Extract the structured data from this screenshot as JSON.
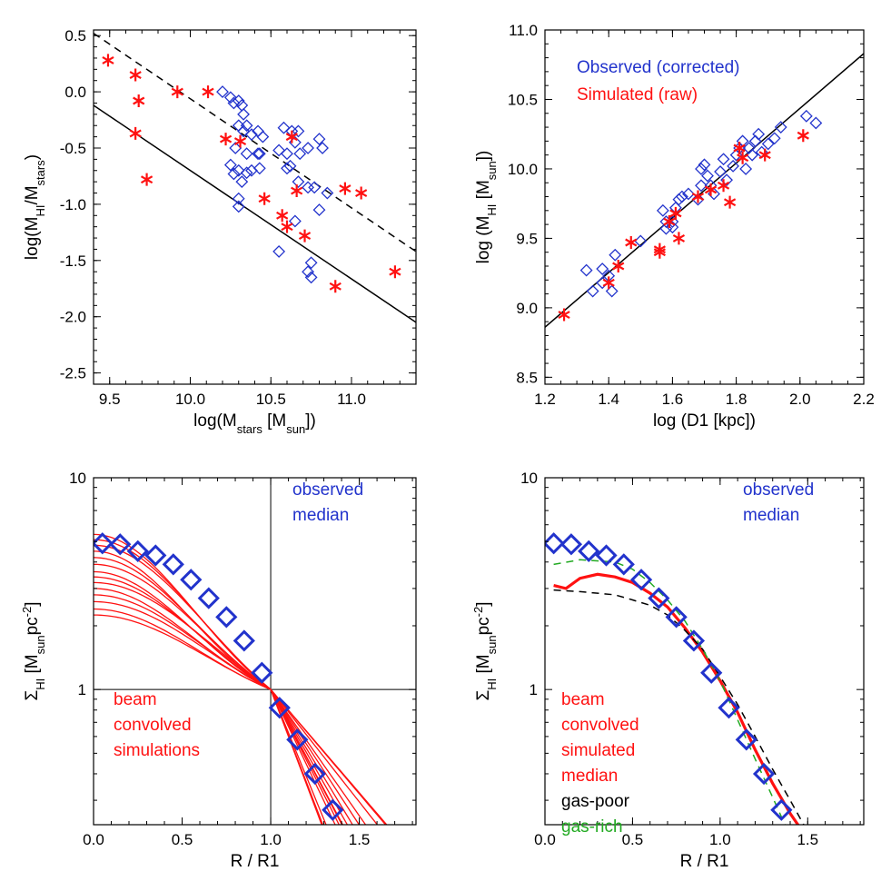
{
  "chart_data": [
    {
      "id": "p1",
      "type": "scatter",
      "xlim": [
        9.4,
        11.4
      ],
      "ylim": [
        -2.6,
        0.55
      ],
      "xticks": [
        "9.5",
        "10.0",
        "10.5",
        "11.0"
      ],
      "yticks": [
        "0.5",
        "0.0",
        "-0.5",
        "-1.0",
        "-1.5",
        "-2.0",
        "-2.5"
      ],
      "xlabel": {
        "pre": "log(M",
        "sub": "stars",
        "mid": " [M",
        "sub2": "sun",
        "post": "])"
      },
      "ylabel": {
        "pre": "log(M",
        "sub": "HI",
        "mid": "/M",
        "sub2": "stars",
        "post": ")"
      },
      "lines": [
        {
          "name": "solid-relation",
          "style": "solid",
          "color": "#000000",
          "points": [
            [
              9.4,
              -0.12
            ],
            [
              11.4,
              -2.05
            ]
          ]
        },
        {
          "name": "dashed-relation",
          "style": "dashed",
          "color": "#000000",
          "points": [
            [
              9.4,
              0.52
            ],
            [
              11.4,
              -1.42
            ]
          ]
        }
      ],
      "series": [
        {
          "name": "Observed (corrected)",
          "marker": "diamond",
          "color": "#2233cc",
          "points": [
            [
              10.2,
              0.0
            ],
            [
              10.25,
              -0.05
            ],
            [
              10.27,
              -0.1
            ],
            [
              10.3,
              -0.08
            ],
            [
              10.32,
              -0.12
            ],
            [
              10.33,
              -0.2
            ],
            [
              10.3,
              -0.3
            ],
            [
              10.35,
              -0.3
            ],
            [
              10.33,
              -0.35
            ],
            [
              10.38,
              -0.38
            ],
            [
              10.42,
              -0.35
            ],
            [
              10.45,
              -0.4
            ],
            [
              10.28,
              -0.5
            ],
            [
              10.35,
              -0.55
            ],
            [
              10.42,
              -0.55
            ],
            [
              10.43,
              -0.55
            ],
            [
              10.55,
              -0.52
            ],
            [
              10.25,
              -0.65
            ],
            [
              10.3,
              -0.7
            ],
            [
              10.38,
              -0.7
            ],
            [
              10.43,
              -0.68
            ],
            [
              10.27,
              -0.73
            ],
            [
              10.35,
              -0.72
            ],
            [
              10.6,
              -0.68
            ],
            [
              10.62,
              -0.66
            ],
            [
              10.32,
              -0.8
            ],
            [
              10.58,
              -0.32
            ],
            [
              10.63,
              -0.35
            ],
            [
              10.67,
              -0.35
            ],
            [
              10.65,
              -0.45
            ],
            [
              10.6,
              -0.55
            ],
            [
              10.68,
              -0.55
            ],
            [
              10.73,
              -0.5
            ],
            [
              10.8,
              -0.42
            ],
            [
              10.82,
              -0.5
            ],
            [
              10.3,
              -0.95
            ],
            [
              10.3,
              -1.02
            ],
            [
              10.67,
              -0.8
            ],
            [
              10.73,
              -0.85
            ],
            [
              10.77,
              -0.85
            ],
            [
              10.85,
              -0.9
            ],
            [
              10.8,
              -1.05
            ],
            [
              10.65,
              -1.15
            ],
            [
              10.55,
              -1.42
            ],
            [
              10.75,
              -1.52
            ],
            [
              10.73,
              -1.6
            ],
            [
              10.75,
              -1.65
            ]
          ]
        },
        {
          "name": "Simulated (raw)",
          "marker": "asterisk",
          "color": "#ff1111",
          "points": [
            [
              9.49,
              0.28
            ],
            [
              9.66,
              0.15
            ],
            [
              9.68,
              -0.08
            ],
            [
              9.66,
              -0.37
            ],
            [
              9.73,
              -0.78
            ],
            [
              9.92,
              0.0
            ],
            [
              10.11,
              0.0
            ],
            [
              10.22,
              -0.42
            ],
            [
              10.31,
              -0.44
            ],
            [
              10.46,
              -0.95
            ],
            [
              10.57,
              -1.1
            ],
            [
              10.6,
              -1.2
            ],
            [
              10.63,
              -0.4
            ],
            [
              10.66,
              -0.88
            ],
            [
              10.71,
              -1.28
            ],
            [
              10.9,
              -1.73
            ],
            [
              10.96,
              -0.86
            ],
            [
              11.06,
              -0.9
            ],
            [
              11.27,
              -1.6
            ]
          ]
        }
      ]
    },
    {
      "id": "p2",
      "type": "scatter",
      "xlim": [
        1.2,
        2.2
      ],
      "ylim": [
        8.45,
        11.0
      ],
      "xticks": [
        "1.2",
        "1.4",
        "1.6",
        "1.8",
        "2.0",
        "2.2"
      ],
      "yticks": [
        "11.0",
        "10.5",
        "10.0",
        "9.5",
        "9.0",
        "8.5"
      ],
      "xlabel": {
        "pre": "log (D1 [kpc])"
      },
      "ylabel": {
        "pre": "log (M",
        "sub": "HI",
        "mid": " [M",
        "sub2": "sun",
        "post": "])"
      },
      "legend": [
        {
          "label": "Observed (corrected)",
          "color": "#2233cc"
        },
        {
          "label": "Simulated (raw)",
          "color": "#ff1111"
        }
      ],
      "lines": [
        {
          "name": "fit-line",
          "style": "solid",
          "color": "#000000",
          "points": [
            [
              1.2,
              8.86
            ],
            [
              2.2,
              10.83
            ]
          ]
        }
      ],
      "series": [
        {
          "name": "Observed (corrected)",
          "marker": "diamond",
          "color": "#2233cc",
          "points": [
            [
              1.33,
              9.27
            ],
            [
              1.35,
              9.12
            ],
            [
              1.38,
              9.28
            ],
            [
              1.38,
              9.18
            ],
            [
              1.4,
              9.23
            ],
            [
              1.41,
              9.12
            ],
            [
              1.42,
              9.38
            ],
            [
              1.5,
              9.48
            ],
            [
              1.57,
              9.7
            ],
            [
              1.58,
              9.62
            ],
            [
              1.58,
              9.57
            ],
            [
              1.6,
              9.62
            ],
            [
              1.6,
              9.58
            ],
            [
              1.61,
              9.72
            ],
            [
              1.62,
              9.78
            ],
            [
              1.63,
              9.8
            ],
            [
              1.65,
              9.82
            ],
            [
              1.68,
              9.78
            ],
            [
              1.69,
              9.88
            ],
            [
              1.69,
              10.0
            ],
            [
              1.7,
              10.03
            ],
            [
              1.71,
              9.95
            ],
            [
              1.72,
              9.88
            ],
            [
              1.73,
              9.82
            ],
            [
              1.75,
              9.98
            ],
            [
              1.76,
              10.07
            ],
            [
              1.77,
              9.92
            ],
            [
              1.79,
              10.02
            ],
            [
              1.8,
              10.1
            ],
            [
              1.81,
              10.15
            ],
            [
              1.82,
              10.2
            ],
            [
              1.83,
              10.0
            ],
            [
              1.84,
              10.15
            ],
            [
              1.85,
              10.1
            ],
            [
              1.86,
              10.2
            ],
            [
              1.87,
              10.25
            ],
            [
              1.88,
              10.12
            ],
            [
              1.9,
              10.18
            ],
            [
              1.92,
              10.22
            ],
            [
              1.94,
              10.3
            ],
            [
              2.02,
              10.38
            ],
            [
              2.05,
              10.33
            ]
          ]
        },
        {
          "name": "Simulated (raw)",
          "marker": "asterisk",
          "color": "#ff1111",
          "points": [
            [
              1.26,
              8.95
            ],
            [
              1.4,
              9.18
            ],
            [
              1.43,
              9.3
            ],
            [
              1.47,
              9.47
            ],
            [
              1.56,
              9.42
            ],
            [
              1.56,
              9.4
            ],
            [
              1.59,
              9.62
            ],
            [
              1.61,
              9.68
            ],
            [
              1.62,
              9.5
            ],
            [
              1.68,
              9.8
            ],
            [
              1.72,
              9.85
            ],
            [
              1.76,
              9.88
            ],
            [
              1.78,
              9.76
            ],
            [
              1.81,
              10.15
            ],
            [
              1.82,
              10.08
            ],
            [
              1.89,
              10.1
            ],
            [
              2.01,
              10.24
            ]
          ]
        }
      ]
    },
    {
      "id": "p3",
      "type": "line",
      "xlim": [
        0.0,
        1.82
      ],
      "ylim_log": [
        0.23,
        10
      ],
      "xticks": [
        "0.0",
        "0.5",
        "1.0",
        "1.5"
      ],
      "yticks": [
        "10",
        "1"
      ],
      "xlabel": {
        "pre": "R / R1"
      },
      "ylabel": {
        "pre": "Σ",
        "sub": "HI",
        "mid": " [M",
        "sub2": "sun",
        "post": "pc",
        "sup": "-2",
        "end": "]"
      },
      "reference_lines": {
        "x": 1.0,
        "y": 1.0
      },
      "annotations": [
        {
          "lines": [
            "observed",
            "median"
          ],
          "color": "#2233cc",
          "place": "top-right"
        },
        {
          "lines": [
            "beam",
            "convolved",
            "simulations"
          ],
          "color": "#ff1111",
          "place": "lower-left"
        }
      ],
      "simulated_curves": {
        "color": "#ff1111",
        "central_values": [
          5.4,
          5.1,
          4.8,
          4.5,
          4.2,
          3.9,
          3.6,
          3.4,
          3.2,
          3.0,
          2.8,
          2.6,
          2.4,
          2.25
        ],
        "profile_widths": [
          0.9,
          0.95,
          1.0,
          0.85,
          0.92,
          0.98,
          0.88,
          0.94,
          1.05,
          0.9,
          0.97,
          1.02,
          0.93,
          0.99
        ]
      },
      "series": [
        {
          "name": "observed median",
          "marker": "diamond",
          "color": "#2233cc",
          "points": [
            [
              0.05,
              4.9
            ],
            [
              0.15,
              4.85
            ],
            [
              0.25,
              4.5
            ],
            [
              0.35,
              4.3
            ],
            [
              0.45,
              3.9
            ],
            [
              0.55,
              3.3
            ],
            [
              0.65,
              2.7
            ],
            [
              0.75,
              2.2
            ],
            [
              0.85,
              1.7
            ],
            [
              0.95,
              1.2
            ],
            [
              1.05,
              0.82
            ],
            [
              1.15,
              0.58
            ],
            [
              1.25,
              0.4
            ],
            [
              1.35,
              0.27
            ]
          ]
        }
      ]
    },
    {
      "id": "p4",
      "type": "line",
      "xlim": [
        0.0,
        1.82
      ],
      "ylim_log": [
        0.23,
        10
      ],
      "xticks": [
        "0.0",
        "0.5",
        "1.0",
        "1.5"
      ],
      "yticks": [
        "10",
        "1"
      ],
      "xlabel": {
        "pre": "R / R1"
      },
      "ylabel": {
        "pre": "Σ",
        "sub": "HI",
        "mid": " [M",
        "sub2": "sun",
        "post": "pc",
        "sup": "-2",
        "end": "]"
      },
      "annotations": [
        {
          "lines": [
            "observed",
            "median"
          ],
          "color": "#2233cc",
          "place": "top-right"
        },
        {
          "lines": [
            "beam",
            "convolved",
            "simulated",
            "median"
          ],
          "color": "#ff1111",
          "place": "lower-left"
        },
        {
          "lines": [
            "gas-poor"
          ],
          "color": "#000000",
          "place": "lower-left"
        },
        {
          "lines": [
            "gas-rich"
          ],
          "color": "#22aa22",
          "place": "lower-left"
        }
      ],
      "lines": [
        {
          "name": "simulated-median",
          "style": "thick",
          "color": "#ff1111",
          "points": [
            [
              0.05,
              3.1
            ],
            [
              0.12,
              3.0
            ],
            [
              0.2,
              3.35
            ],
            [
              0.3,
              3.5
            ],
            [
              0.4,
              3.4
            ],
            [
              0.5,
              3.2
            ],
            [
              0.6,
              2.85
            ],
            [
              0.7,
              2.45
            ],
            [
              0.8,
              1.95
            ],
            [
              0.9,
              1.5
            ],
            [
              1.0,
              1.1
            ],
            [
              1.1,
              0.78
            ],
            [
              1.2,
              0.52
            ],
            [
              1.3,
              0.36
            ],
            [
              1.4,
              0.26
            ],
            [
              1.46,
              0.22
            ]
          ]
        },
        {
          "name": "gas-poor",
          "style": "dashed",
          "color": "#000000",
          "points": [
            [
              0.05,
              2.95
            ],
            [
              0.2,
              2.9
            ],
            [
              0.4,
              2.8
            ],
            [
              0.5,
              2.65
            ],
            [
              0.6,
              2.5
            ],
            [
              0.7,
              2.25
            ],
            [
              0.8,
              1.9
            ],
            [
              0.9,
              1.55
            ],
            [
              1.0,
              1.15
            ],
            [
              1.1,
              0.85
            ],
            [
              1.2,
              0.6
            ],
            [
              1.3,
              0.42
            ],
            [
              1.4,
              0.3
            ],
            [
              1.49,
              0.22
            ]
          ]
        },
        {
          "name": "gas-rich",
          "style": "dashed",
          "color": "#22aa22",
          "points": [
            [
              0.05,
              3.9
            ],
            [
              0.2,
              4.1
            ],
            [
              0.4,
              4.0
            ],
            [
              0.5,
              3.7
            ],
            [
              0.6,
              3.2
            ],
            [
              0.7,
              2.65
            ],
            [
              0.8,
              2.1
            ],
            [
              0.9,
              1.55
            ],
            [
              1.0,
              1.1
            ],
            [
              1.1,
              0.72
            ],
            [
              1.2,
              0.47
            ],
            [
              1.3,
              0.31
            ],
            [
              1.37,
              0.23
            ]
          ]
        }
      ],
      "series": [
        {
          "name": "observed median",
          "marker": "diamond",
          "color": "#2233cc",
          "points": [
            [
              0.05,
              4.9
            ],
            [
              0.15,
              4.85
            ],
            [
              0.25,
              4.5
            ],
            [
              0.35,
              4.3
            ],
            [
              0.45,
              3.9
            ],
            [
              0.55,
              3.3
            ],
            [
              0.65,
              2.7
            ],
            [
              0.75,
              2.2
            ],
            [
              0.85,
              1.7
            ],
            [
              0.95,
              1.2
            ],
            [
              1.05,
              0.82
            ],
            [
              1.15,
              0.58
            ],
            [
              1.25,
              0.4
            ],
            [
              1.35,
              0.27
            ]
          ]
        }
      ]
    }
  ]
}
